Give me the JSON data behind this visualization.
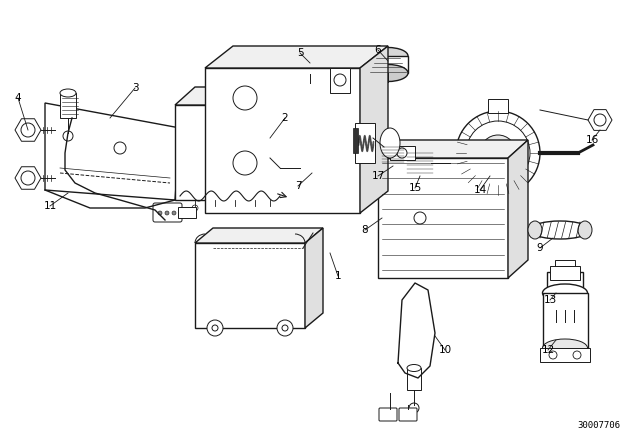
{
  "background_color": "#ffffff",
  "diagram_number": "30007706",
  "fig_width": 6.4,
  "fig_height": 4.48,
  "dpi": 100,
  "line_color": "#1a1a1a",
  "text_color": "#000000",
  "label_fontsize": 7.5
}
